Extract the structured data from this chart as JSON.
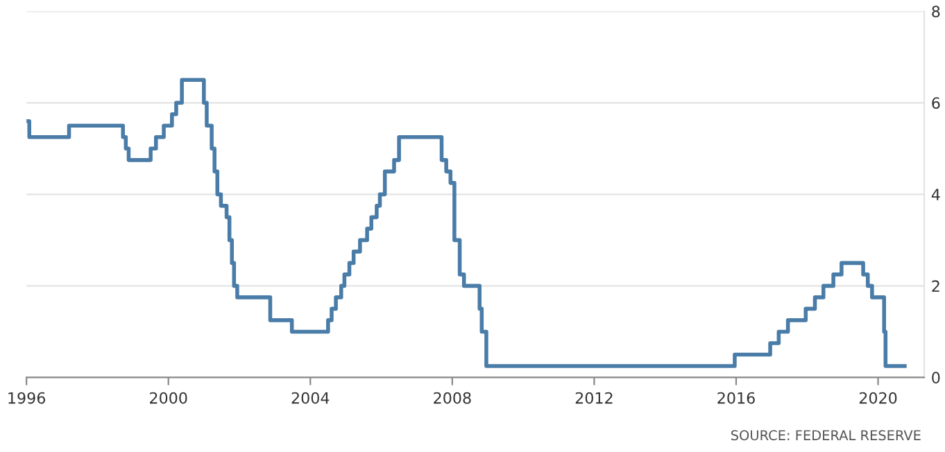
{
  "chart_data": {
    "type": "step",
    "color": "#4a7ca8",
    "x": [
      1996.0,
      1996.08,
      1997.2,
      1998.72,
      1998.8,
      1998.88,
      1999.5,
      1999.65,
      1999.87,
      2000.1,
      2000.22,
      2000.38,
      2001.0,
      2001.08,
      2001.22,
      2001.3,
      2001.38,
      2001.48,
      2001.64,
      2001.72,
      2001.79,
      2001.85,
      2001.94,
      2002.87,
      2003.48,
      2004.5,
      2004.6,
      2004.72,
      2004.87,
      2004.96,
      2005.1,
      2005.22,
      2005.4,
      2005.6,
      2005.72,
      2005.87,
      2005.96,
      2006.1,
      2006.36,
      2006.5,
      2007.7,
      2007.83,
      2007.95,
      2008.06,
      2008.21,
      2008.33,
      2008.77,
      2008.83,
      2008.96,
      2015.96,
      2016.96,
      2017.2,
      2017.46,
      2017.96,
      2018.22,
      2018.46,
      2018.74,
      2018.97,
      2019.58,
      2019.71,
      2019.83,
      2020.17,
      2020.21,
      2020.75
    ],
    "values": [
      5.6,
      5.25,
      5.5,
      5.25,
      5.0,
      4.75,
      5.0,
      5.25,
      5.5,
      5.75,
      6.0,
      6.5,
      6.0,
      5.5,
      5.0,
      4.5,
      4.0,
      3.75,
      3.5,
      3.0,
      2.5,
      2.0,
      1.75,
      1.25,
      1.0,
      1.25,
      1.5,
      1.75,
      2.0,
      2.25,
      2.5,
      2.75,
      3.0,
      3.25,
      3.5,
      3.75,
      4.0,
      4.5,
      4.75,
      5.25,
      4.75,
      4.5,
      4.25,
      3.0,
      2.25,
      2.0,
      1.5,
      1.0,
      0.25,
      0.5,
      0.75,
      1.0,
      1.25,
      1.5,
      1.75,
      2.0,
      2.25,
      2.5,
      2.25,
      2.0,
      1.75,
      1.0,
      0.25,
      0.25
    ],
    "xlim": [
      1996,
      2021.3
    ],
    "xticks": [
      1996,
      2000,
      2004,
      2008,
      2012,
      2016,
      2020
    ],
    "ylim": [
      0,
      8
    ],
    "yticks": [
      0,
      2,
      4,
      6,
      8
    ],
    "grid": "y",
    "annotations": [
      "SOURCE: FEDERAL RESERVE"
    ]
  }
}
